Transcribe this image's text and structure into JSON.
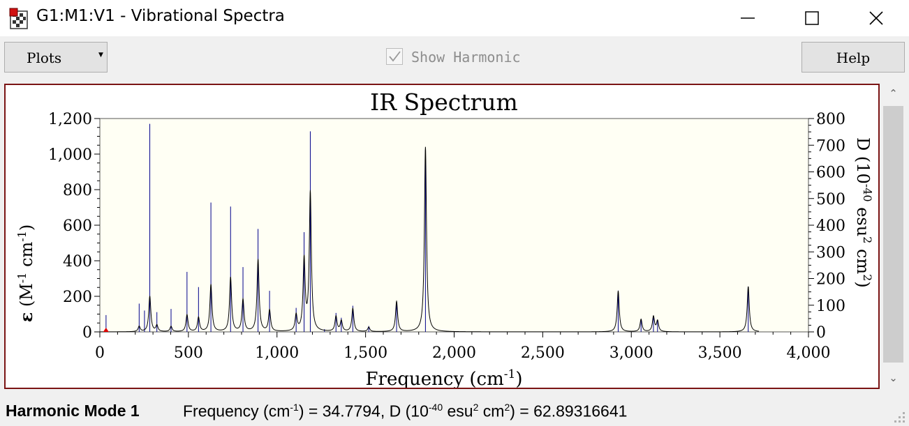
{
  "window": {
    "title": "G1:M1:V1 - Vibrational Spectra",
    "icon": "gaussview-spectra-icon",
    "controls": [
      "minimize-icon",
      "maximize-icon",
      "close-icon"
    ]
  },
  "toolbar": {
    "plots_label": "Plots",
    "show_harmonic_label": "Show Harmonic",
    "show_harmonic_checked": true,
    "help_label": "Help"
  },
  "status": {
    "mode_label": "Harmonic Mode 1",
    "freq_prefix": "Frequency (cm",
    "freq_prefix_sup": "-1",
    "freq_middle": ") = 34.7794, D (10",
    "freq_middle_sup": "-40",
    "freq_unit": " esu",
    "freq_unit_sup": "2",
    "freq_unit2": " cm",
    "freq_unit2_sup": "2",
    "freq_end": ") = 62.89316641"
  },
  "colors": {
    "title_bar_bg": "#ffffff",
    "frame_border": "#7a1414",
    "plot_bg": "#fffff4",
    "stick": "#00008b",
    "curve": "#000000",
    "marker": "#e00000"
  },
  "chart_data": {
    "type": "line",
    "title": "IR Spectrum",
    "xlabel": "Frequency (cm⁻¹)",
    "ylabel_left": "ε (M⁻¹ cm⁻¹)",
    "ylabel_right": "D (10⁻⁴⁰ esu² cm²)",
    "xlim": [
      0,
      4000
    ],
    "ylim_left": [
      0,
      1200
    ],
    "ylim_right": [
      0,
      800
    ],
    "x_ticks": [
      "0",
      "500",
      "1,000",
      "1,500",
      "2,000",
      "2,500",
      "3,000",
      "3,500",
      "4,000"
    ],
    "y_ticks_left": [
      "0",
      "200",
      "400",
      "600",
      "800",
      "1,000",
      "1,200"
    ],
    "y_ticks_right": [
      "0",
      "100",
      "200",
      "300",
      "400",
      "500",
      "600",
      "700",
      "800"
    ],
    "grid": false,
    "legend": "none",
    "selected_mode_freq": 34.7794,
    "sticks": [
      {
        "freq": 35,
        "D": 63
      },
      {
        "freq": 222,
        "D": 106
      },
      {
        "freq": 252,
        "D": 80
      },
      {
        "freq": 282,
        "D": 780
      },
      {
        "freq": 322,
        "D": 74
      },
      {
        "freq": 402,
        "D": 86
      },
      {
        "freq": 492,
        "D": 225
      },
      {
        "freq": 557,
        "D": 168
      },
      {
        "freq": 627,
        "D": 485
      },
      {
        "freq": 738,
        "D": 470
      },
      {
        "freq": 808,
        "D": 243
      },
      {
        "freq": 893,
        "D": 386
      },
      {
        "freq": 958,
        "D": 154
      },
      {
        "freq": 1108,
        "D": 90
      },
      {
        "freq": 1153,
        "D": 374
      },
      {
        "freq": 1188,
        "D": 752
      },
      {
        "freq": 1268,
        "D": 10
      },
      {
        "freq": 1333,
        "D": 71
      },
      {
        "freq": 1363,
        "D": 53
      },
      {
        "freq": 1428,
        "D": 98
      },
      {
        "freq": 1518,
        "D": 22
      },
      {
        "freq": 1675,
        "D": 114
      },
      {
        "freq": 1838,
        "D": 682
      },
      {
        "freq": 2926,
        "D": 155
      },
      {
        "freq": 3055,
        "D": 48
      },
      {
        "freq": 3125,
        "D": 60
      },
      {
        "freq": 3148,
        "D": 45
      },
      {
        "freq": 3660,
        "D": 170
      }
    ],
    "curve_peaks": [
      {
        "freq": 222,
        "epsilon": 30
      },
      {
        "freq": 282,
        "epsilon": 200
      },
      {
        "freq": 322,
        "epsilon": 35
      },
      {
        "freq": 402,
        "epsilon": 30
      },
      {
        "freq": 492,
        "epsilon": 95
      },
      {
        "freq": 557,
        "epsilon": 80
      },
      {
        "freq": 627,
        "epsilon": 265
      },
      {
        "freq": 738,
        "epsilon": 305
      },
      {
        "freq": 808,
        "epsilon": 180
      },
      {
        "freq": 893,
        "epsilon": 405
      },
      {
        "freq": 958,
        "epsilon": 120
      },
      {
        "freq": 1108,
        "epsilon": 90
      },
      {
        "freq": 1153,
        "epsilon": 400
      },
      {
        "freq": 1188,
        "epsilon": 780
      },
      {
        "freq": 1333,
        "epsilon": 85
      },
      {
        "freq": 1363,
        "epsilon": 60
      },
      {
        "freq": 1428,
        "epsilon": 130
      },
      {
        "freq": 1518,
        "epsilon": 25
      },
      {
        "freq": 1675,
        "epsilon": 170
      },
      {
        "freq": 1838,
        "epsilon": 1040
      },
      {
        "freq": 2926,
        "epsilon": 230
      },
      {
        "freq": 3055,
        "epsilon": 70
      },
      {
        "freq": 3125,
        "epsilon": 85
      },
      {
        "freq": 3148,
        "epsilon": 60
      },
      {
        "freq": 3660,
        "epsilon": 255
      }
    ]
  }
}
